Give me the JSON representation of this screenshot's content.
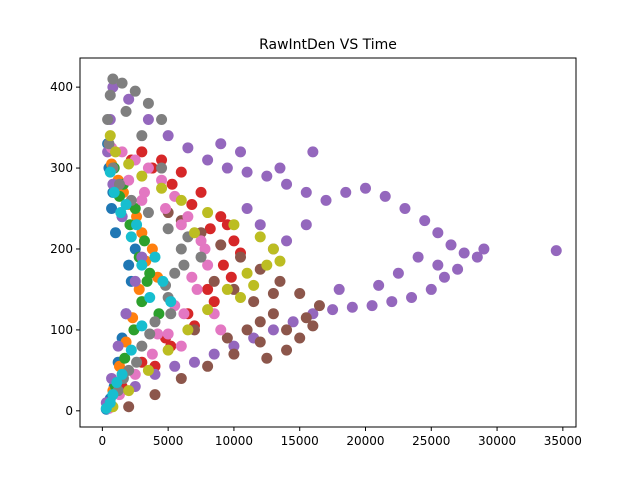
{
  "chart_data": {
    "type": "scatter",
    "title": "RawIntDen VS Time",
    "xlabel": "",
    "ylabel": "",
    "xlim": [
      -1700,
      36000
    ],
    "ylim": [
      -20,
      436
    ],
    "xticks": [
      0,
      5000,
      10000,
      15000,
      20000,
      25000,
      30000,
      35000
    ],
    "yticks": [
      0,
      100,
      200,
      300,
      400
    ],
    "grid": false,
    "legend": "none",
    "series": [
      {
        "color": "#1f77b4",
        "points": [
          [
            300,
            2
          ],
          [
            600,
            15
          ],
          [
            900,
            30
          ],
          [
            1200,
            60
          ],
          [
            1500,
            90
          ],
          [
            1800,
            120
          ],
          [
            2200,
            160
          ],
          [
            2500,
            200
          ],
          [
            1500,
            240
          ],
          [
            800,
            270
          ],
          [
            500,
            300
          ],
          [
            400,
            330
          ],
          [
            700,
            250
          ],
          [
            1000,
            220
          ],
          [
            2000,
            180
          ]
        ]
      },
      {
        "color": "#ff7f0e",
        "points": [
          [
            400,
            5
          ],
          [
            800,
            25
          ],
          [
            1300,
            55
          ],
          [
            1800,
            85
          ],
          [
            2300,
            115
          ],
          [
            2800,
            150
          ],
          [
            3300,
            185
          ],
          [
            3000,
            220
          ],
          [
            2000,
            255
          ],
          [
            1200,
            285
          ],
          [
            700,
            305
          ],
          [
            1600,
            270
          ],
          [
            2600,
            240
          ],
          [
            3800,
            200
          ],
          [
            4200,
            165
          ]
        ]
      },
      {
        "color": "#2ca02c",
        "points": [
          [
            500,
            5
          ],
          [
            1000,
            30
          ],
          [
            1700,
            65
          ],
          [
            2400,
            100
          ],
          [
            3000,
            135
          ],
          [
            3600,
            170
          ],
          [
            3200,
            210
          ],
          [
            2500,
            250
          ],
          [
            1600,
            280
          ],
          [
            900,
            300
          ],
          [
            2800,
            190
          ],
          [
            3400,
            160
          ],
          [
            4300,
            120
          ],
          [
            2100,
            230
          ],
          [
            1300,
            265
          ]
        ]
      },
      {
        "color": "#d62728",
        "points": [
          [
            600,
            5
          ],
          [
            1500,
            30
          ],
          [
            3000,
            60
          ],
          [
            4800,
            90
          ],
          [
            6500,
            120
          ],
          [
            8000,
            150
          ],
          [
            9200,
            180
          ],
          [
            10000,
            210
          ],
          [
            9000,
            240
          ],
          [
            7500,
            270
          ],
          [
            6000,
            295
          ],
          [
            4500,
            310
          ],
          [
            3000,
            320
          ],
          [
            5200,
            80
          ],
          [
            7000,
            105
          ],
          [
            8500,
            135
          ],
          [
            9800,
            165
          ],
          [
            10500,
            195
          ],
          [
            8200,
            225
          ],
          [
            6800,
            255
          ],
          [
            5300,
            280
          ],
          [
            3800,
            300
          ],
          [
            2200,
            310
          ],
          [
            4000,
            55
          ],
          [
            9500,
            230
          ]
        ]
      },
      {
        "color": "#9467bd",
        "points": [
          [
            300,
            10
          ],
          [
            700,
            40
          ],
          [
            1200,
            80
          ],
          [
            1800,
            120
          ],
          [
            2500,
            160
          ],
          [
            3000,
            190
          ],
          [
            1500,
            240
          ],
          [
            800,
            280
          ],
          [
            400,
            320
          ],
          [
            600,
            360
          ],
          [
            800,
            400
          ],
          [
            2000,
            385
          ],
          [
            3500,
            360
          ],
          [
            5000,
            340
          ],
          [
            6500,
            325
          ],
          [
            8000,
            310
          ],
          [
            9500,
            300
          ],
          [
            11000,
            295
          ],
          [
            12500,
            290
          ],
          [
            14000,
            280
          ],
          [
            15500,
            270
          ],
          [
            17000,
            260
          ],
          [
            18500,
            270
          ],
          [
            20000,
            275
          ],
          [
            21500,
            265
          ],
          [
            23000,
            250
          ],
          [
            24500,
            235
          ],
          [
            25500,
            220
          ],
          [
            26500,
            205
          ],
          [
            27500,
            195
          ],
          [
            28500,
            190
          ],
          [
            29000,
            200
          ],
          [
            34500,
            198
          ],
          [
            27000,
            175
          ],
          [
            26000,
            165
          ],
          [
            25000,
            150
          ],
          [
            23500,
            140
          ],
          [
            22000,
            135
          ],
          [
            20500,
            130
          ],
          [
            19000,
            128
          ],
          [
            17500,
            125
          ],
          [
            16000,
            120
          ],
          [
            14500,
            110
          ],
          [
            13000,
            100
          ],
          [
            11500,
            90
          ],
          [
            10000,
            80
          ],
          [
            8500,
            70
          ],
          [
            7000,
            60
          ],
          [
            5500,
            55
          ],
          [
            4000,
            45
          ],
          [
            2500,
            30
          ],
          [
            15500,
            230
          ],
          [
            14000,
            210
          ],
          [
            13000,
            200
          ],
          [
            18000,
            150
          ],
          [
            22500,
            170
          ],
          [
            24000,
            190
          ],
          [
            25500,
            180
          ],
          [
            21000,
            155
          ],
          [
            12000,
            230
          ],
          [
            11000,
            250
          ],
          [
            13500,
            300
          ],
          [
            16000,
            320
          ],
          [
            10500,
            320
          ],
          [
            9000,
            330
          ]
        ]
      },
      {
        "color": "#8c564b",
        "points": [
          [
            2000,
            5
          ],
          [
            4000,
            20
          ],
          [
            6000,
            40
          ],
          [
            8000,
            55
          ],
          [
            10000,
            70
          ],
          [
            12000,
            85
          ],
          [
            14000,
            100
          ],
          [
            15500,
            115
          ],
          [
            16500,
            130
          ],
          [
            15000,
            145
          ],
          [
            13500,
            160
          ],
          [
            12000,
            175
          ],
          [
            10500,
            190
          ],
          [
            9000,
            205
          ],
          [
            7500,
            220
          ],
          [
            6000,
            235
          ],
          [
            5000,
            245
          ],
          [
            11000,
            100
          ],
          [
            13000,
            120
          ],
          [
            15000,
            90
          ],
          [
            14000,
            75
          ],
          [
            12500,
            65
          ],
          [
            9500,
            90
          ],
          [
            11500,
            135
          ],
          [
            13000,
            145
          ],
          [
            8500,
            160
          ],
          [
            10000,
            150
          ],
          [
            16000,
            105
          ],
          [
            7000,
            100
          ],
          [
            12000,
            110
          ]
        ]
      },
      {
        "color": "#e377c2",
        "points": [
          [
            500,
            3
          ],
          [
            1300,
            20
          ],
          [
            2500,
            45
          ],
          [
            3800,
            70
          ],
          [
            5000,
            95
          ],
          [
            6200,
            120
          ],
          [
            7200,
            150
          ],
          [
            8000,
            180
          ],
          [
            7500,
            210
          ],
          [
            6500,
            240
          ],
          [
            5500,
            265
          ],
          [
            4500,
            285
          ],
          [
            3500,
            300
          ],
          [
            2500,
            310
          ],
          [
            1500,
            320
          ],
          [
            700,
            325
          ],
          [
            4200,
            95
          ],
          [
            5500,
            130
          ],
          [
            6800,
            165
          ],
          [
            7800,
            200
          ],
          [
            6000,
            230
          ],
          [
            3000,
            260
          ],
          [
            2000,
            285
          ],
          [
            8500,
            120
          ],
          [
            9000,
            100
          ],
          [
            6000,
            80
          ],
          [
            3200,
            270
          ],
          [
            4800,
            250
          ]
        ]
      },
      {
        "color": "#7f7f7f",
        "points": [
          [
            500,
            5
          ],
          [
            1200,
            25
          ],
          [
            2000,
            50
          ],
          [
            3000,
            80
          ],
          [
            4000,
            110
          ],
          [
            5000,
            140
          ],
          [
            5500,
            170
          ],
          [
            6000,
            200
          ],
          [
            5000,
            225
          ],
          [
            3500,
            245
          ],
          [
            2200,
            260
          ],
          [
            1300,
            280
          ],
          [
            800,
            300
          ],
          [
            500,
            330
          ],
          [
            400,
            360
          ],
          [
            600,
            390
          ],
          [
            800,
            410
          ],
          [
            1500,
            405
          ],
          [
            2500,
            395
          ],
          [
            3500,
            380
          ],
          [
            4500,
            360
          ],
          [
            1800,
            370
          ],
          [
            3000,
            340
          ],
          [
            4500,
            300
          ],
          [
            6500,
            215
          ],
          [
            4800,
            155
          ],
          [
            3600,
            95
          ],
          [
            2600,
            60
          ],
          [
            1600,
            40
          ],
          [
            7500,
            190
          ],
          [
            6200,
            180
          ],
          [
            5200,
            120
          ]
        ]
      },
      {
        "color": "#bcbd22",
        "points": [
          [
            800,
            5
          ],
          [
            2000,
            25
          ],
          [
            3500,
            50
          ],
          [
            5000,
            75
          ],
          [
            6500,
            100
          ],
          [
            8000,
            125
          ],
          [
            9500,
            150
          ],
          [
            11000,
            170
          ],
          [
            12500,
            180
          ],
          [
            13000,
            200
          ],
          [
            12000,
            215
          ],
          [
            10000,
            230
          ],
          [
            8000,
            245
          ],
          [
            6000,
            260
          ],
          [
            4500,
            275
          ],
          [
            3000,
            290
          ],
          [
            2000,
            305
          ],
          [
            1000,
            320
          ],
          [
            600,
            340
          ],
          [
            11500,
            155
          ],
          [
            13500,
            185
          ],
          [
            10500,
            140
          ],
          [
            7000,
            220
          ]
        ]
      },
      {
        "color": "#17becf",
        "points": [
          [
            300,
            3
          ],
          [
            800,
            20
          ],
          [
            1500,
            45
          ],
          [
            2200,
            75
          ],
          [
            3000,
            105
          ],
          [
            3600,
            140
          ],
          [
            3000,
            180
          ],
          [
            2200,
            215
          ],
          [
            1400,
            245
          ],
          [
            900,
            270
          ],
          [
            600,
            295
          ],
          [
            1800,
            255
          ],
          [
            2600,
            230
          ],
          [
            4000,
            190
          ],
          [
            4600,
            160
          ],
          [
            5200,
            135
          ],
          [
            600,
            10
          ],
          [
            1100,
            35
          ]
        ]
      }
    ]
  }
}
